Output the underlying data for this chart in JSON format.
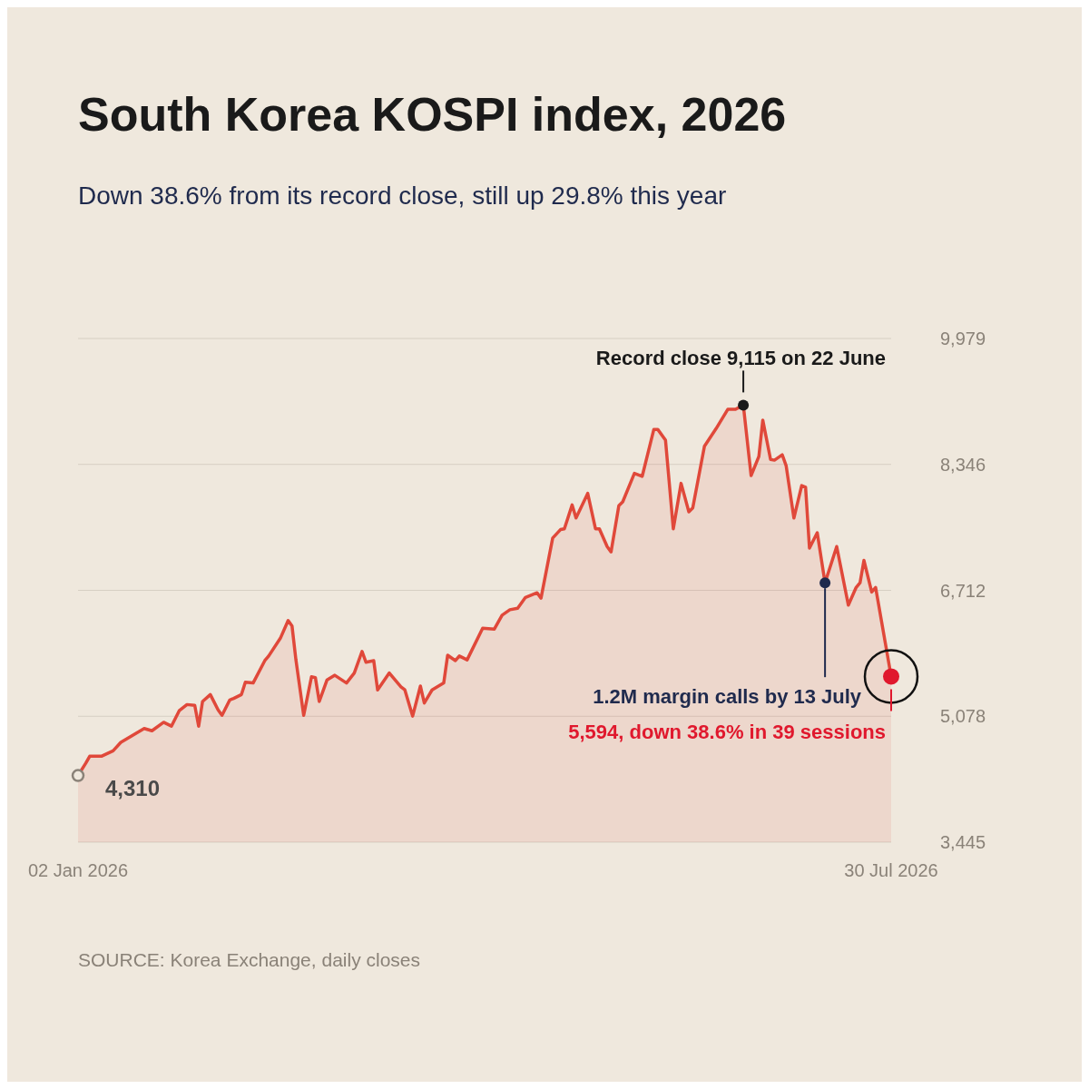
{
  "chart_data": {
    "type": "area",
    "title": "South Korea KOSPI index, 2026",
    "subtitle": "Down 38.6% from its record close, still up 29.8% this year",
    "x": [
      "2026-01-02",
      "2026-01-04",
      "2026-01-05",
      "2026-01-08",
      "2026-01-11",
      "2026-01-13",
      "2026-01-19",
      "2026-01-21",
      "2026-01-24",
      "2026-01-26",
      "2026-01-28",
      "2026-01-30",
      "2026-02-01",
      "2026-02-02",
      "2026-02-03",
      "2026-02-05",
      "2026-02-07",
      "2026-02-08",
      "2026-02-10",
      "2026-02-11",
      "2026-02-13",
      "2026-02-14",
      "2026-02-16",
      "2026-02-19",
      "2026-02-20",
      "2026-02-23",
      "2026-02-25",
      "2026-02-26",
      "2026-02-27",
      "2026-03-01",
      "2026-03-03",
      "2026-03-04",
      "2026-03-05",
      "2026-03-07",
      "2026-03-09",
      "2026-03-12",
      "2026-03-14",
      "2026-03-16",
      "2026-03-17",
      "2026-03-19",
      "2026-03-20",
      "2026-03-23",
      "2026-03-26",
      "2026-03-27",
      "2026-03-29",
      "2026-03-31",
      "2026-04-01",
      "2026-04-03",
      "2026-04-06",
      "2026-04-07",
      "2026-04-09",
      "2026-04-10",
      "2026-04-12",
      "2026-04-16",
      "2026-04-19",
      "2026-04-21",
      "2026-04-23",
      "2026-04-25",
      "2026-04-27",
      "2026-04-30",
      "2026-05-01",
      "2026-05-04",
      "2026-05-06",
      "2026-05-07",
      "2026-05-09",
      "2026-05-10",
      "2026-05-13",
      "2026-05-15",
      "2026-05-16",
      "2026-05-18",
      "2026-05-19",
      "2026-05-21",
      "2026-05-22",
      "2026-05-25",
      "2026-05-27",
      "2026-05-30",
      "2026-05-31",
      "2026-06-02",
      "2026-06-04",
      "2026-06-06",
      "2026-06-08",
      "2026-06-09",
      "2026-06-12",
      "2026-06-15",
      "2026-06-18",
      "2026-06-20",
      "2026-06-22",
      "2026-06-24",
      "2026-06-26",
      "2026-06-27",
      "2026-06-29",
      "2026-06-30",
      "2026-07-02",
      "2026-07-03",
      "2026-07-05",
      "2026-07-07",
      "2026-07-08",
      "2026-07-09",
      "2026-07-11",
      "2026-07-13",
      "2026-07-16",
      "2026-07-19",
      "2026-07-21",
      "2026-07-22",
      "2026-07-23",
      "2026-07-25",
      "2026-07-26",
      "2026-07-30"
    ],
    "series": [
      {
        "color": "#e0483a",
        "values": [
          4310,
          4470,
          4560,
          4560,
          4630,
          4740,
          4920,
          4890,
          5000,
          4950,
          5150,
          5230,
          5220,
          4950,
          5270,
          5360,
          5160,
          5090,
          5290,
          5310,
          5360,
          5520,
          5510,
          5800,
          5860,
          6090,
          6320,
          6250,
          5810,
          5090,
          5590,
          5580,
          5270,
          5550,
          5610,
          5510,
          5640,
          5920,
          5780,
          5800,
          5420,
          5640,
          5460,
          5420,
          5080,
          5470,
          5250,
          5420,
          5510,
          5870,
          5800,
          5860,
          5810,
          6220,
          6210,
          6390,
          6460,
          6480,
          6620,
          6680,
          6610,
          7390,
          7500,
          7510,
          7820,
          7650,
          7970,
          7510,
          7510,
          7280,
          7210,
          7810,
          7860,
          8230,
          8190,
          8800,
          8800,
          8660,
          7510,
          8100,
          7730,
          7780,
          8580,
          8810,
          9060,
          9060,
          9115,
          8200,
          8450,
          8920,
          8410,
          8400,
          8470,
          8330,
          7650,
          8070,
          8050,
          7260,
          7460,
          6810,
          7280,
          6520,
          6750,
          6810,
          7100,
          6690,
          6750,
          5594
        ]
      }
    ],
    "xlim": [
      "2026-01-02",
      "2026-07-30"
    ],
    "xticks": [
      {
        "value": "2026-01-02",
        "label": "02 Jan 2026"
      },
      {
        "value": "2026-07-30",
        "label": "30 Jul 2026"
      }
    ],
    "ylim": [
      3445,
      9979
    ],
    "yticks": [
      {
        "value": 3445,
        "label": "3,445"
      },
      {
        "value": 5078,
        "label": "5,078"
      },
      {
        "value": 6712,
        "label": "6,712"
      },
      {
        "value": 8346,
        "label": "8,346"
      },
      {
        "value": 9979,
        "label": "9,979"
      }
    ],
    "grid": "y",
    "annotations": [
      {
        "text": "4,310",
        "x": "2026-01-02",
        "y": 4310
      },
      {
        "text": "Record close 9,115 on 22 June",
        "x": "2026-06-22",
        "y": 9115
      },
      {
        "text": "1.2M margin calls by 13 July",
        "x": "2026-07-13",
        "y": 6810
      },
      {
        "text": "5,594, down 38.6% in 39 sessions",
        "x": "2026-07-30",
        "y": 5594
      },
      "SOURCE: Korea Exchange, daily closes"
    ]
  }
}
